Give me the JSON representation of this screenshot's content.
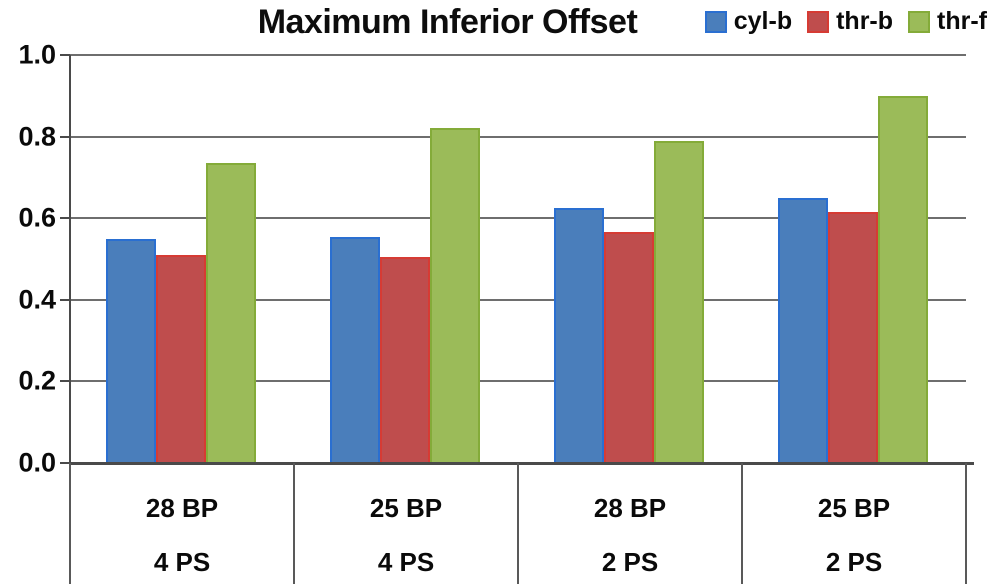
{
  "title": "Maximum Inferior Offset",
  "chart_data": {
    "type": "bar",
    "title": "Maximum Inferior Offset",
    "categories": [
      {
        "line1": "28 BP",
        "line2": "4 PS"
      },
      {
        "line1": "25 BP",
        "line2": "4 PS"
      },
      {
        "line1": "28 BP",
        "line2": "2 PS"
      },
      {
        "line1": "25 BP",
        "line2": "2 PS"
      }
    ],
    "series": [
      {
        "name": "cyl-b",
        "color": "#4a7ebb",
        "border_color": "#2a6fd1",
        "values": [
          0.55,
          0.555,
          0.625,
          0.65
        ]
      },
      {
        "name": "thr-b",
        "color": "#bf4d4d",
        "border_color": "#d63b34",
        "values": [
          0.51,
          0.505,
          0.565,
          0.615
        ]
      },
      {
        "name": "thr-f",
        "color": "#9bbb59",
        "border_color": "#84ab39",
        "values": [
          0.735,
          0.82,
          0.79,
          0.9
        ]
      }
    ],
    "ylabel": "",
    "xlabel": "",
    "ylim": [
      0.0,
      1.0
    ],
    "yticks": [
      "0.0",
      "0.2",
      "0.4",
      "0.6",
      "0.8",
      "1.0"
    ],
    "grid": "on",
    "legend_position": "top-right",
    "colors": {
      "gridline": "#6e6e6e",
      "axis": "#4a4a4a",
      "table_line": "#595959",
      "text": "#0a0a0a"
    }
  }
}
